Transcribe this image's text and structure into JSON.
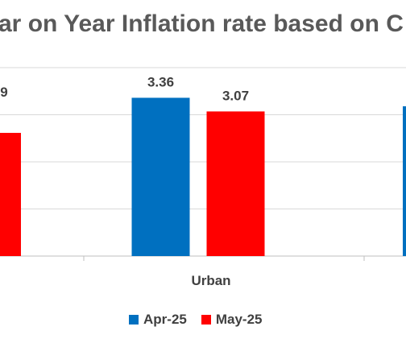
{
  "chart_data": {
    "type": "bar",
    "title": "ar on Year Inflation rate based on C",
    "categories": [
      "",
      "Urban",
      ""
    ],
    "series": [
      {
        "name": "Apr-25",
        "color": "#0070C0",
        "values": [
          null,
          3.36,
          null
        ]
      },
      {
        "name": "May-25",
        "color": "#FF0000",
        "values": [
          null,
          3.07,
          null
        ]
      }
    ],
    "data_labels": [
      [
        "9",
        "3.36"
      ],
      [
        "3.07",
        ""
      ]
    ],
    "xlabel": "",
    "ylabel": "",
    "ylim": [
      0,
      4
    ],
    "grid": true,
    "legend_position": "bottom"
  }
}
